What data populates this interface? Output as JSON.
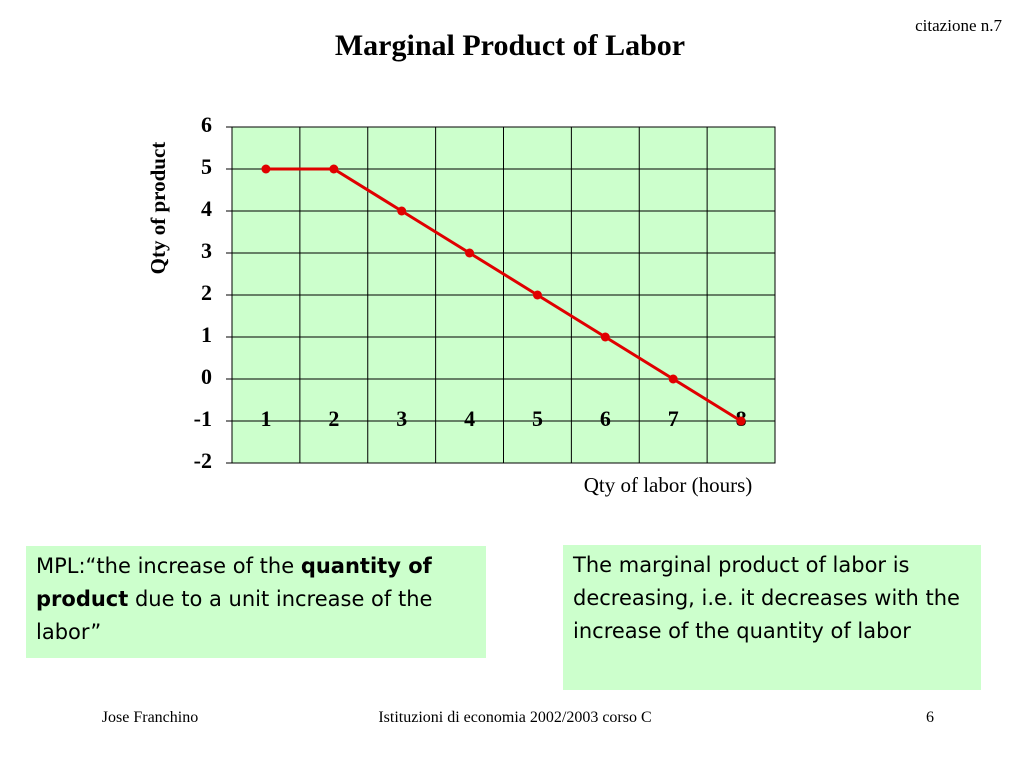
{
  "header": {
    "note": "citazione n.7"
  },
  "chart_data": {
    "type": "line",
    "title": "Marginal Product of Labor",
    "x_label": "Qty of labor (hours)",
    "y_label": "Qty of product",
    "categories": [
      "1",
      "2",
      "3",
      "4",
      "5",
      "6",
      "7",
      "8"
    ],
    "series": [
      {
        "color": "#e00000",
        "values": [
          5,
          5,
          4,
          3,
          2,
          1,
          0,
          -1
        ]
      }
    ],
    "ylim": [
      -2,
      6
    ],
    "yticks": [
      -2,
      -1,
      0,
      1,
      2,
      3,
      4,
      5,
      6
    ],
    "grid": true,
    "background": "#ccffcc"
  },
  "boxes": [
    {
      "parts": [
        "MPL:“the increase of the ",
        "quantity of product",
        " due to a unit increase of the labor”"
      ]
    },
    {
      "text": "The marginal product of labor is decreasing, i.e. it decreases with the increase of the quantity of labor"
    }
  ],
  "footer": {
    "author": "Jose Franchino",
    "course": "Istituzioni di economia 2002/2003 corso C",
    "page": "6"
  }
}
